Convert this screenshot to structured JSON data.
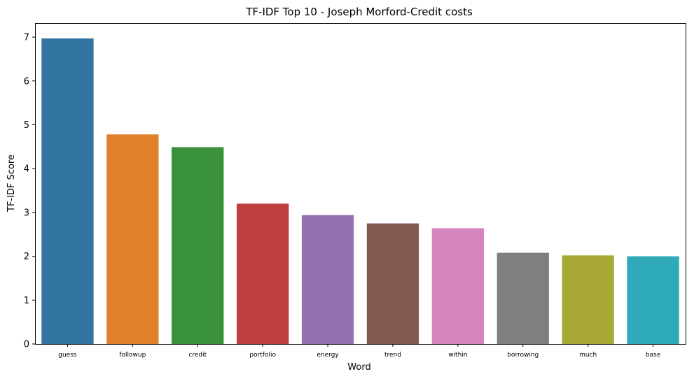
{
  "chart_data": {
    "type": "bar",
    "title": "TF-IDF Top 10 - Joseph Morford-Credit costs",
    "xlabel": "Word",
    "ylabel": "TF-IDF Score",
    "categories": [
      "guess",
      "followup",
      "credit",
      "portfolio",
      "energy",
      "trend",
      "within",
      "borrowing",
      "much",
      "base"
    ],
    "values": [
      6.97,
      4.78,
      4.49,
      3.2,
      2.94,
      2.75,
      2.64,
      2.08,
      2.02,
      2.0
    ],
    "colors": [
      "#3274a1",
      "#e1812c",
      "#3a923a",
      "#c03d3e",
      "#9372b2",
      "#845b53",
      "#d684bd",
      "#7f7f7f",
      "#a9aa35",
      "#2eaab8"
    ],
    "ylim": [
      0,
      7.32
    ],
    "yticks": [
      0,
      1,
      2,
      3,
      4,
      5,
      6,
      7
    ],
    "grid": false,
    "legend": "none"
  }
}
